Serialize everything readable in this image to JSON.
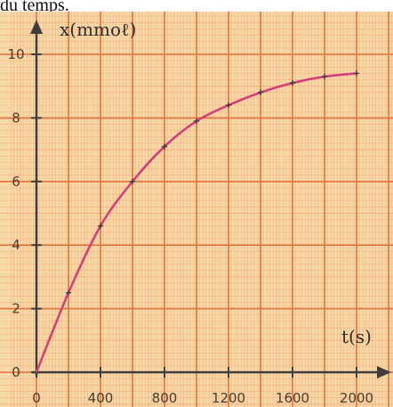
{
  "caption": "du temps.",
  "chart_data": {
    "type": "line",
    "title": "",
    "xlabel": "t(s)",
    "ylabel": "x(mmoℓ)",
    "xlim": [
      0,
      2150
    ],
    "ylim": [
      0,
      10.5
    ],
    "xticks": [
      "0",
      "400",
      "800",
      "1200",
      "1600",
      "2000"
    ],
    "yticks": [
      "0",
      "2",
      "4",
      "6",
      "8",
      "10"
    ],
    "grid": true,
    "series": [
      {
        "name": "",
        "x": [
          0,
          200,
          400,
          600,
          800,
          1000,
          1200,
          1400,
          1600,
          1800,
          2000
        ],
        "y": [
          0,
          2.5,
          4.6,
          6.0,
          7.1,
          7.9,
          8.4,
          8.8,
          9.1,
          9.3,
          9.4
        ]
      }
    ],
    "colors": {
      "background": "#f7d9a8",
      "grid_minor": "#f4b27f",
      "grid_major": "#e56f3a",
      "curve": "#d63a7a",
      "axis": "#3d3d3d"
    }
  }
}
